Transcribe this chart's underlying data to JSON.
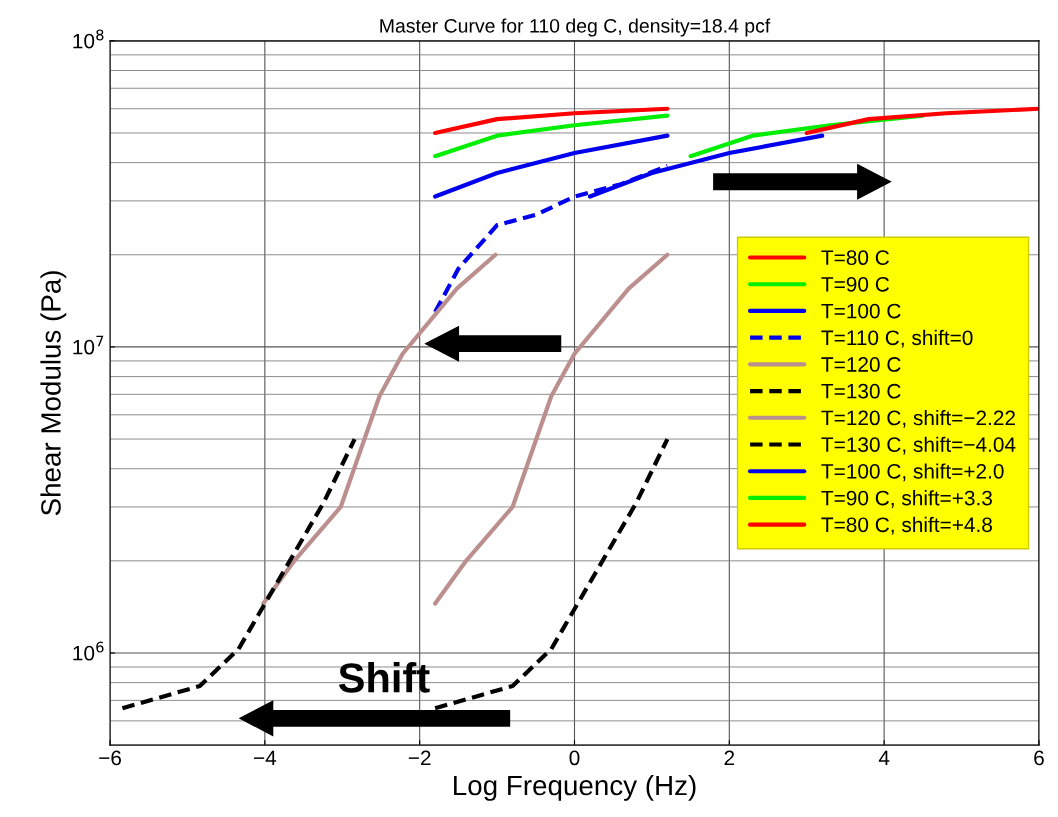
{
  "chart_data": {
    "type": "line",
    "title": "Master Curve for 110 deg C, density=18.4 pcf",
    "xlabel": "Log Frequency (Hz)",
    "ylabel": "Shear Modulus (Pa)",
    "log": "y",
    "xlim": [
      -6,
      6
    ],
    "ylim": [
      500000,
      100000000
    ],
    "xticks": [
      {
        "value": -6,
        "label": "−6"
      },
      {
        "value": -4,
        "label": "−4"
      },
      {
        "value": -2,
        "label": "−2"
      },
      0,
      2,
      4,
      6
    ],
    "yticks": [
      {
        "value": 1000000,
        "label": "10$^{6}$"
      },
      {
        "value": 10000000,
        "label": "10$^{7}$"
      },
      {
        "value": 100000000,
        "label": "10$^{8}$"
      }
    ],
    "grid": true,
    "legend": "right",
    "marker": "none",
    "annotations": [
      "Shift"
    ],
    "series": [
      {
        "name": "T=80 C",
        "color": "#ff0000",
        "line_style": "solid",
        "x": [
          -1.8,
          -1.0,
          0,
          1.2
        ],
        "values": [
          50000000,
          55500000,
          58000000,
          60000000
        ]
      },
      {
        "name": "T=90 C",
        "color": "#00ee00",
        "line_style": "solid",
        "x": [
          -1.8,
          -1.0,
          0,
          1.2
        ],
        "values": [
          42000000,
          49000000,
          53000000,
          57000000
        ]
      },
      {
        "name": "T=100 C",
        "color": "#0000ee",
        "line_style": "solid",
        "x": [
          -1.8,
          -1.0,
          0,
          1.2
        ],
        "values": [
          31000000,
          37000000,
          43000000,
          49000000
        ]
      },
      {
        "name": "T=110 C, shift=0",
        "color": "#0000ee",
        "line_style": "dashed",
        "x": [
          -1.8,
          -1.5,
          -1.0,
          -0.5,
          0,
          0.6,
          1.2
        ],
        "values": [
          13000000,
          18000000,
          25000000,
          27000000,
          31000000,
          34000000,
          39000000
        ]
      },
      {
        "name": "T=120 C",
        "color": "#bc8f8f",
        "line_style": "solid",
        "x": [
          -1.8,
          -1.4,
          -0.8,
          -0.3,
          0,
          0.7,
          1.2
        ],
        "values": [
          1450000,
          2000000,
          3000000,
          6900000,
          9500000,
          15500000,
          20000000
        ]
      },
      {
        "name": "T=130 C",
        "color": "#000000",
        "line_style": "dashed",
        "x": [
          -1.8,
          -0.8,
          -0.3,
          0.2,
          0.8,
          1.2
        ],
        "values": [
          660000,
          780000,
          1030000,
          1700000,
          3100000,
          5000000
        ]
      },
      {
        "name": "T=120 C, shift=−2.22",
        "color": "#bc8f8f",
        "line_style": "solid",
        "x": [
          -4.02,
          -3.62,
          -3.02,
          -2.52,
          -2.22,
          -1.52,
          -1.02
        ],
        "values": [
          1450000,
          2000000,
          3000000,
          6900000,
          9500000,
          15500000,
          20000000
        ]
      },
      {
        "name": "T=130 C, shift=−4.04",
        "color": "#000000",
        "line_style": "dashed",
        "x": [
          -5.84,
          -4.84,
          -4.34,
          -3.84,
          -3.24,
          -2.84
        ],
        "values": [
          660000,
          780000,
          1030000,
          1700000,
          3100000,
          5000000
        ]
      },
      {
        "name": "T=100 C, shift=+2.0",
        "color": "#0000ee",
        "line_style": "solid",
        "x": [
          0.2,
          1.0,
          2.0,
          3.2
        ],
        "values": [
          31000000,
          37000000,
          43000000,
          49000000
        ]
      },
      {
        "name": "T=90 C, shift=+3.3",
        "color": "#00ee00",
        "line_style": "solid",
        "x": [
          1.5,
          2.3,
          3.3,
          4.5
        ],
        "values": [
          42000000,
          49000000,
          53000000,
          57000000
        ]
      },
      {
        "name": "T=80 C, shift=+4.8",
        "color": "#ff0000",
        "line_style": "solid",
        "x": [
          3.0,
          3.8,
          4.8,
          6.0
        ],
        "values": [
          50000000,
          55500000,
          58000000,
          60000000
        ]
      }
    ]
  }
}
